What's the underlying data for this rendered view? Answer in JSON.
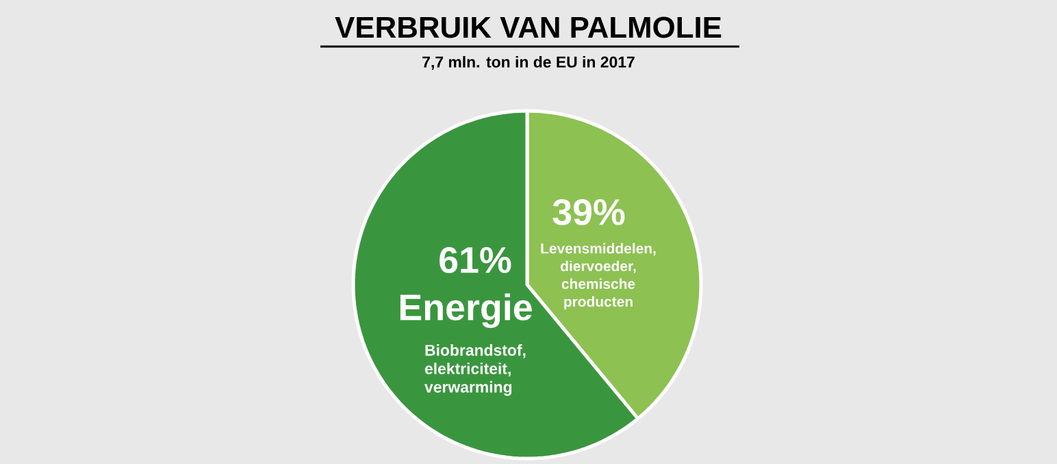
{
  "chart_data": {
    "type": "pie",
    "title": "VERBRUIK VAN PALMOLIE",
    "subtitle": "7,7 mln. ton in de EU in 2017",
    "categories": [
      "Levensmiddelen, diervoeder, chemische producten",
      "Energie"
    ],
    "values": [
      39,
      61
    ],
    "value_labels": [
      "39%",
      "61%"
    ],
    "colors": [
      "#8dc152",
      "#3a963e"
    ],
    "annotations": [
      "Biobrandstof, elektriciteit, verwarming"
    ]
  }
}
